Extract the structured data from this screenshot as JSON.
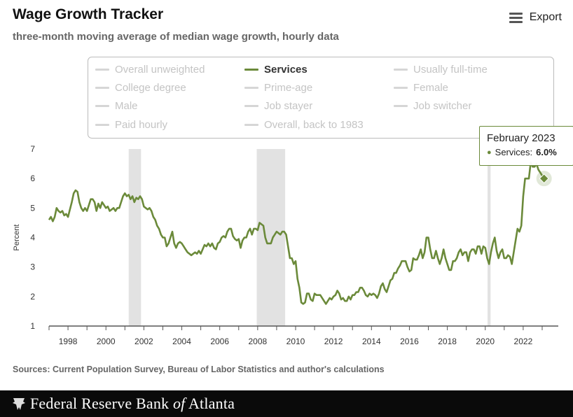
{
  "header": {
    "title": "Wage Growth Tracker",
    "subtitle": "three-month moving average of median wage growth, hourly data",
    "export_label": "Export"
  },
  "legend": {
    "items": [
      {
        "label": "Overall unweighted",
        "active": false
      },
      {
        "label": "Services",
        "active": true
      },
      {
        "label": "Usually full-time",
        "active": false
      },
      {
        "label": "College degree",
        "active": false
      },
      {
        "label": "Prime-age",
        "active": false
      },
      {
        "label": "Female",
        "active": false
      },
      {
        "label": "Male",
        "active": false
      },
      {
        "label": "Job stayer",
        "active": false
      },
      {
        "label": "Job switcher",
        "active": false
      },
      {
        "label": "Paid hourly",
        "active": false
      },
      {
        "label": "Overall, back to 1983",
        "active": false
      }
    ]
  },
  "tooltip": {
    "title": "February 2023",
    "series_label": "Services:",
    "value_label": "6.0%"
  },
  "colors": {
    "series": "#6b8a3a",
    "recession": "#e2e2e2",
    "inactive_legend": "#c4c4c4"
  },
  "chart_data": {
    "type": "line",
    "ylabel": "Percent",
    "xlabel": "",
    "ylim": [
      1,
      7
    ],
    "xlim": [
      1997.0,
      2023.85
    ],
    "y_ticks": [
      "1",
      "2",
      "3",
      "4",
      "5",
      "6",
      "7"
    ],
    "x_ticks": [
      "1998",
      "2000",
      "2002",
      "2004",
      "2006",
      "2008",
      "2010",
      "2012",
      "2014",
      "2016",
      "2018",
      "2020",
      "2022"
    ],
    "recessions": [
      [
        2001.2,
        2001.85
      ],
      [
        2007.95,
        2009.45
      ],
      [
        2020.12,
        2020.28
      ]
    ],
    "series": [
      {
        "name": "Services",
        "points": [
          [
            1997.0,
            4.6
          ],
          [
            1997.1,
            4.7
          ],
          [
            1997.2,
            4.55
          ],
          [
            1997.3,
            4.7
          ],
          [
            1997.4,
            5.0
          ],
          [
            1997.5,
            4.9
          ],
          [
            1997.6,
            4.85
          ],
          [
            1997.7,
            4.9
          ],
          [
            1997.8,
            4.75
          ],
          [
            1997.9,
            4.8
          ],
          [
            1998.0,
            4.7
          ],
          [
            1998.1,
            4.95
          ],
          [
            1998.2,
            5.2
          ],
          [
            1998.3,
            5.5
          ],
          [
            1998.4,
            5.6
          ],
          [
            1998.5,
            5.55
          ],
          [
            1998.6,
            5.2
          ],
          [
            1998.7,
            5.0
          ],
          [
            1998.8,
            4.9
          ],
          [
            1998.9,
            5.0
          ],
          [
            1999.0,
            4.9
          ],
          [
            1999.1,
            5.1
          ],
          [
            1999.2,
            5.3
          ],
          [
            1999.3,
            5.3
          ],
          [
            1999.4,
            5.2
          ],
          [
            1999.5,
            4.9
          ],
          [
            1999.6,
            5.15
          ],
          [
            1999.7,
            5.0
          ],
          [
            1999.8,
            5.2
          ],
          [
            1999.9,
            5.1
          ],
          [
            2000.0,
            5.0
          ],
          [
            2000.1,
            5.05
          ],
          [
            2000.2,
            4.9
          ],
          [
            2000.3,
            4.95
          ],
          [
            2000.4,
            5.0
          ],
          [
            2000.5,
            4.9
          ],
          [
            2000.6,
            5.0
          ],
          [
            2000.7,
            5.0
          ],
          [
            2000.8,
            5.2
          ],
          [
            2000.9,
            5.4
          ],
          [
            2001.0,
            5.5
          ],
          [
            2001.1,
            5.4
          ],
          [
            2001.2,
            5.45
          ],
          [
            2001.3,
            5.3
          ],
          [
            2001.4,
            5.4
          ],
          [
            2001.5,
            5.2
          ],
          [
            2001.6,
            5.35
          ],
          [
            2001.7,
            5.3
          ],
          [
            2001.8,
            5.4
          ],
          [
            2001.9,
            5.3
          ],
          [
            2002.0,
            5.05
          ],
          [
            2002.1,
            5.0
          ],
          [
            2002.2,
            4.95
          ],
          [
            2002.3,
            5.0
          ],
          [
            2002.4,
            4.9
          ],
          [
            2002.5,
            4.7
          ],
          [
            2002.6,
            4.6
          ],
          [
            2002.7,
            4.4
          ],
          [
            2002.8,
            4.3
          ],
          [
            2002.9,
            4.1
          ],
          [
            2003.0,
            4.0
          ],
          [
            2003.1,
            4.0
          ],
          [
            2003.2,
            3.7
          ],
          [
            2003.3,
            3.8
          ],
          [
            2003.4,
            4.0
          ],
          [
            2003.5,
            4.2
          ],
          [
            2003.6,
            3.8
          ],
          [
            2003.7,
            3.65
          ],
          [
            2003.8,
            3.8
          ],
          [
            2003.9,
            3.85
          ],
          [
            2004.0,
            3.8
          ],
          [
            2004.1,
            3.7
          ],
          [
            2004.2,
            3.6
          ],
          [
            2004.3,
            3.5
          ],
          [
            2004.4,
            3.45
          ],
          [
            2004.5,
            3.4
          ],
          [
            2004.6,
            3.45
          ],
          [
            2004.7,
            3.5
          ],
          [
            2004.8,
            3.45
          ],
          [
            2004.9,
            3.55
          ],
          [
            2005.0,
            3.45
          ],
          [
            2005.1,
            3.6
          ],
          [
            2005.2,
            3.75
          ],
          [
            2005.3,
            3.7
          ],
          [
            2005.4,
            3.8
          ],
          [
            2005.5,
            3.7
          ],
          [
            2005.6,
            3.8
          ],
          [
            2005.7,
            3.65
          ],
          [
            2005.8,
            3.6
          ],
          [
            2005.9,
            3.8
          ],
          [
            2006.0,
            3.85
          ],
          [
            2006.1,
            4.0
          ],
          [
            2006.2,
            4.05
          ],
          [
            2006.3,
            4.0
          ],
          [
            2006.4,
            4.2
          ],
          [
            2006.5,
            4.3
          ],
          [
            2006.6,
            4.3
          ],
          [
            2006.7,
            4.05
          ],
          [
            2006.8,
            3.95
          ],
          [
            2006.9,
            3.9
          ],
          [
            2007.0,
            3.95
          ],
          [
            2007.1,
            3.65
          ],
          [
            2007.2,
            3.9
          ],
          [
            2007.3,
            4.0
          ],
          [
            2007.4,
            4.0
          ],
          [
            2007.5,
            4.2
          ],
          [
            2007.6,
            4.3
          ],
          [
            2007.7,
            4.1
          ],
          [
            2007.8,
            4.3
          ],
          [
            2007.9,
            4.3
          ],
          [
            2008.0,
            4.25
          ],
          [
            2008.1,
            4.5
          ],
          [
            2008.2,
            4.45
          ],
          [
            2008.3,
            4.4
          ],
          [
            2008.4,
            4.0
          ],
          [
            2008.5,
            3.8
          ],
          [
            2008.6,
            3.8
          ],
          [
            2008.7,
            3.8
          ],
          [
            2008.8,
            4.0
          ],
          [
            2008.9,
            4.1
          ],
          [
            2009.0,
            4.2
          ],
          [
            2009.1,
            4.15
          ],
          [
            2009.2,
            4.1
          ],
          [
            2009.3,
            4.2
          ],
          [
            2009.4,
            4.2
          ],
          [
            2009.5,
            4.1
          ],
          [
            2009.6,
            3.7
          ],
          [
            2009.7,
            3.3
          ],
          [
            2009.8,
            3.3
          ],
          [
            2009.9,
            3.1
          ],
          [
            2010.0,
            3.2
          ],
          [
            2010.1,
            2.6
          ],
          [
            2010.2,
            2.3
          ],
          [
            2010.3,
            1.8
          ],
          [
            2010.4,
            1.75
          ],
          [
            2010.5,
            1.8
          ],
          [
            2010.6,
            2.1
          ],
          [
            2010.7,
            2.1
          ],
          [
            2010.8,
            1.9
          ],
          [
            2010.9,
            1.85
          ],
          [
            2011.0,
            2.1
          ],
          [
            2011.1,
            2.05
          ],
          [
            2011.2,
            2.05
          ],
          [
            2011.3,
            2.05
          ],
          [
            2011.4,
            1.95
          ],
          [
            2011.5,
            1.85
          ],
          [
            2011.6,
            1.75
          ],
          [
            2011.7,
            1.85
          ],
          [
            2011.8,
            1.95
          ],
          [
            2011.9,
            1.9
          ],
          [
            2012.0,
            2.0
          ],
          [
            2012.1,
            2.05
          ],
          [
            2012.2,
            2.2
          ],
          [
            2012.3,
            2.1
          ],
          [
            2012.4,
            1.9
          ],
          [
            2012.5,
            1.95
          ],
          [
            2012.6,
            1.85
          ],
          [
            2012.7,
            1.85
          ],
          [
            2012.8,
            2.0
          ],
          [
            2012.9,
            1.9
          ],
          [
            2013.0,
            2.05
          ],
          [
            2013.1,
            2.05
          ],
          [
            2013.2,
            2.15
          ],
          [
            2013.3,
            2.15
          ],
          [
            2013.4,
            2.3
          ],
          [
            2013.5,
            2.3
          ],
          [
            2013.6,
            2.2
          ],
          [
            2013.7,
            2.05
          ],
          [
            2013.8,
            2.0
          ],
          [
            2013.9,
            2.1
          ],
          [
            2014.0,
            2.05
          ],
          [
            2014.1,
            2.1
          ],
          [
            2014.2,
            2.05
          ],
          [
            2014.3,
            1.95
          ],
          [
            2014.4,
            2.1
          ],
          [
            2014.5,
            2.35
          ],
          [
            2014.6,
            2.45
          ],
          [
            2014.7,
            2.25
          ],
          [
            2014.8,
            2.15
          ],
          [
            2014.9,
            2.35
          ],
          [
            2015.0,
            2.55
          ],
          [
            2015.1,
            2.6
          ],
          [
            2015.2,
            2.8
          ],
          [
            2015.3,
            2.8
          ],
          [
            2015.4,
            2.95
          ],
          [
            2015.5,
            3.05
          ],
          [
            2015.6,
            3.2
          ],
          [
            2015.7,
            3.2
          ],
          [
            2015.8,
            3.2
          ],
          [
            2015.9,
            3.0
          ],
          [
            2016.0,
            2.85
          ],
          [
            2016.1,
            2.9
          ],
          [
            2016.2,
            3.3
          ],
          [
            2016.3,
            3.25
          ],
          [
            2016.4,
            3.25
          ],
          [
            2016.5,
            3.4
          ],
          [
            2016.6,
            3.6
          ],
          [
            2016.7,
            3.3
          ],
          [
            2016.8,
            3.5
          ],
          [
            2016.9,
            4.0
          ],
          [
            2017.0,
            4.0
          ],
          [
            2017.1,
            3.6
          ],
          [
            2017.2,
            3.3
          ],
          [
            2017.3,
            3.3
          ],
          [
            2017.4,
            3.55
          ],
          [
            2017.5,
            3.3
          ],
          [
            2017.6,
            3.1
          ],
          [
            2017.7,
            3.3
          ],
          [
            2017.8,
            3.6
          ],
          [
            2017.9,
            3.3
          ],
          [
            2018.0,
            3.1
          ],
          [
            2018.1,
            2.9
          ],
          [
            2018.2,
            2.9
          ],
          [
            2018.3,
            3.2
          ],
          [
            2018.4,
            3.2
          ],
          [
            2018.5,
            3.3
          ],
          [
            2018.6,
            3.5
          ],
          [
            2018.7,
            3.6
          ],
          [
            2018.8,
            3.4
          ],
          [
            2018.9,
            3.5
          ],
          [
            2019.0,
            3.5
          ],
          [
            2019.1,
            3.2
          ],
          [
            2019.2,
            3.5
          ],
          [
            2019.3,
            3.6
          ],
          [
            2019.4,
            3.6
          ],
          [
            2019.5,
            3.45
          ],
          [
            2019.6,
            3.7
          ],
          [
            2019.7,
            3.7
          ],
          [
            2019.8,
            3.45
          ],
          [
            2019.9,
            3.7
          ],
          [
            2020.0,
            3.65
          ],
          [
            2020.1,
            3.3
          ],
          [
            2020.2,
            3.1
          ],
          [
            2020.3,
            3.5
          ],
          [
            2020.4,
            3.8
          ],
          [
            2020.5,
            4.0
          ],
          [
            2020.6,
            3.55
          ],
          [
            2020.7,
            3.3
          ],
          [
            2020.8,
            3.5
          ],
          [
            2020.9,
            3.6
          ],
          [
            2021.0,
            3.3
          ],
          [
            2021.1,
            3.3
          ],
          [
            2021.2,
            3.4
          ],
          [
            2021.3,
            3.35
          ],
          [
            2021.4,
            3.1
          ],
          [
            2021.5,
            3.5
          ],
          [
            2021.6,
            3.9
          ],
          [
            2021.7,
            4.3
          ],
          [
            2021.8,
            4.2
          ],
          [
            2021.9,
            4.4
          ],
          [
            2022.0,
            5.4
          ],
          [
            2022.1,
            6.0
          ],
          [
            2022.2,
            6.0
          ],
          [
            2022.3,
            6.0
          ],
          [
            2022.4,
            6.55
          ],
          [
            2022.5,
            6.4
          ],
          [
            2022.6,
            6.4
          ],
          [
            2022.7,
            6.5
          ],
          [
            2022.8,
            6.3
          ],
          [
            2022.9,
            6.2
          ],
          [
            2023.0,
            6.1
          ],
          [
            2023.1,
            6.0
          ]
        ]
      }
    ],
    "highlight": {
      "x": 2023.1,
      "y": 6.0
    }
  }
}
